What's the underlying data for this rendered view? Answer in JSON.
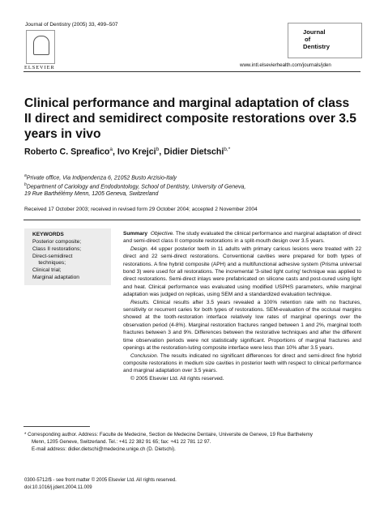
{
  "header": {
    "citation": "Journal of Dentistry (2005) 33, 499–507",
    "publisher": "ELSEVIER",
    "journal_line1": "Journal",
    "journal_line2": "of",
    "journal_line3": "Dentistry",
    "url": "www.intl.elsevierhealth.com/journals/jden"
  },
  "article": {
    "title": "Clinical performance and marginal adaptation of class II direct and semidirect composite restorations over 3.5 years in vivo",
    "authors": [
      {
        "name": "Roberto C. Spreafico",
        "sup": "a"
      },
      {
        "name": "Ivo Krejci",
        "sup": "b"
      },
      {
        "name": "Didier Dietschi",
        "sup": "b,*"
      }
    ],
    "author_separator": ", ",
    "affiliations": [
      {
        "sup": "a",
        "text": "Private office, Via Indipendenza 6, 21052 Busto Arzisio-Italy"
      },
      {
        "sup": "b",
        "text": "Department of Cariology and Endodontology, School of Dentistry, University of Geneva,"
      },
      {
        "sup": "",
        "text": "19 Rue Barthélémy Menn, 1205 Geneva, Switzerland"
      }
    ],
    "received": "Received 17 October 2003; received in revised form 29 October 2004; accepted 2 November 2004"
  },
  "keywords": {
    "heading": "KEYWORDS",
    "items": [
      "Posterior composite;",
      "Class II restorations;",
      "Direct-semidirect",
      "    techniques;",
      "Clinical trial;",
      "Marginal adaptation"
    ]
  },
  "summary": {
    "label": "Summary",
    "objective_label": "Objective.",
    "objective": "The study evaluated the clinical performance and marginal adaptation of direct and semi-direct class II composite restorations in a split-mouth design over 3.5 years.",
    "design_label": "Design.",
    "design": "44 upper posterior teeth in 11 adults with primary carious lesions were treated with 22 direct and 22 semi-direct restorations. Conventional cavities were prepared for both types of restorations. A fine hybrid composite (APH) and a multifunctional adhesive system (Prisma universal bond 3) were used for all restorations. The incremental '3-sited light curing' technique was applied to direct restorations. Semi-direct inlays were prefabricated on silicone casts and post-cured using light and heat. Clinical performance was evaluated using modified USPHS parameters, while marginal adaptation was judged on replicas, using SEM and a standardized evaluation technique.",
    "results_label": "Results.",
    "results": "Clinical results after 3.5 years revealed a 100% retention rate with no fractures, sensitivity or recurrent caries for both types of restorations. SEM-evaluation of the occlusal margins showed at the tooth-restoration interface relatively low rates of marginal openings over the observation period (4-8%). Marginal restoration fractures ranged between 1 and 2%, marginal tooth fractures between 3 and 9%. Differences between the restorative techniques and after the different time observation periods were not statistically significant. Proportions of marginal fractures and openings at the restoration-luting composite interface were less than 10% after 3.5 years.",
    "conclusion_label": "Conclusion.",
    "conclusion": "The results indicated no significant differences for direct and semi-direct fine hybrid composite restorations in medium size cavities in posterior teeth with respect to clinical performance and marginal adaptation over 3.5 years.",
    "copyright": "© 2005 Elsevier Ltd. All rights reserved."
  },
  "footnote": {
    "line1": "* Corresponding author. Address: Faculte de Medecine, Section de Medecine Dentaire, Universite de Geneve, 19 Rue Barthelemy",
    "line2": "Menn, 1205 Geneve, Switzerland. Tel.: +41 22 382 91 65; fax: +41 22 781 12 97.",
    "line3": "E-mail address: didier.dietschi@medecine.unige.ch (D. Dietschi)."
  },
  "footer": {
    "line1": "0300-5712/$ - see front matter © 2005 Elsevier Ltd. All rights reserved.",
    "line2": "doi:10.1016/j.jdent.2004.11.009"
  }
}
